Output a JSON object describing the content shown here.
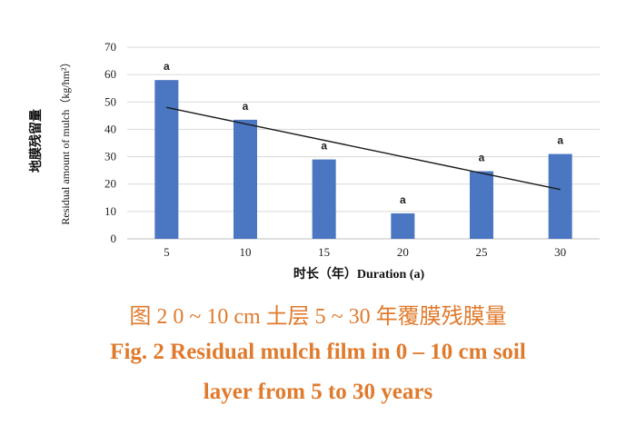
{
  "chart_data": {
    "type": "bar",
    "categories": [
      "5",
      "10",
      "15",
      "20",
      "25",
      "30"
    ],
    "values": [
      58,
      43.5,
      29,
      9.3,
      24.7,
      31
    ],
    "significance": [
      "a",
      "a",
      "a",
      "a",
      "a",
      "a"
    ],
    "trendline": {
      "x": [
        "5",
        "30"
      ],
      "y": [
        48,
        18
      ]
    },
    "ylim": [
      0,
      70
    ],
    "yticks": [
      "0",
      "10",
      "20",
      "30",
      "40",
      "50",
      "60",
      "70"
    ],
    "xlabel": "时长（年）Duration (a)",
    "ylabel_cn": "地膜残留量",
    "ylabel_en": "Residual amount of mulch（kg/hm²）",
    "grid": true,
    "colors": {
      "bar": "#4a76c2",
      "trend": "#1a1a1a",
      "grid": "#d9d9d9"
    }
  },
  "caption": {
    "cn": "图 2    0 ~ 10 cm 土层 5 ~ 30 年覆膜残膜量",
    "en_line1": "Fig. 2    Residual mulch film in 0 – 10 cm soil",
    "en_line2": "layer from 5 to 30 years"
  }
}
